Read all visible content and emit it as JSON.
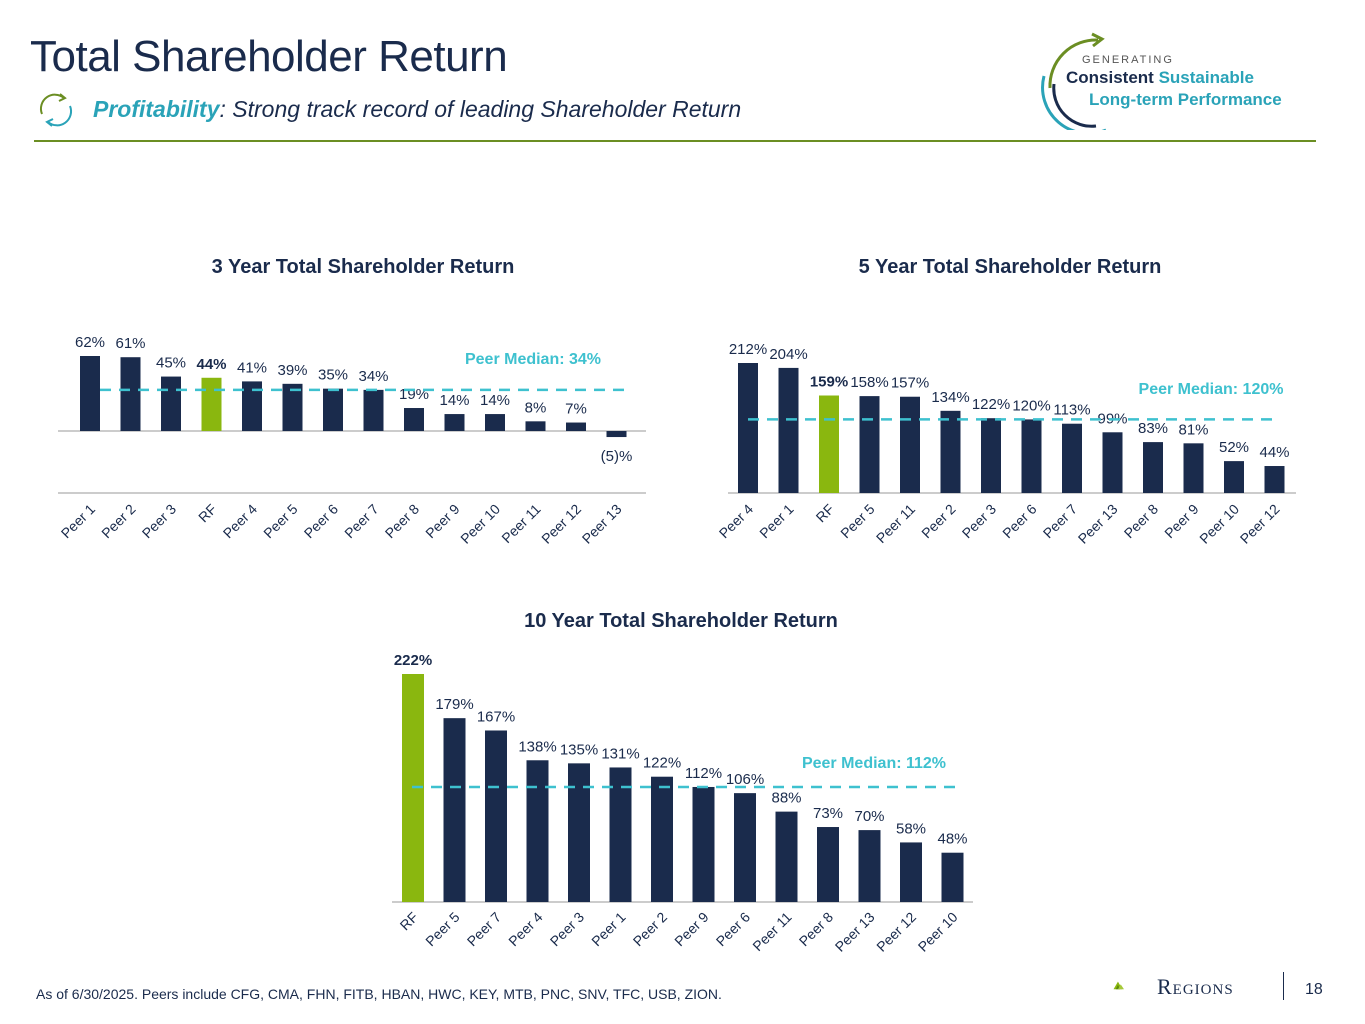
{
  "header": {
    "title": "Total Shareholder Return",
    "subtitle_keyword": "Profitability",
    "subtitle_rest": ": Strong track record of leading Shareholder Return",
    "subtitle_icon": "recycle-arrows-icon"
  },
  "brand": {
    "line0": "GENERATING",
    "line1a": "Consistent",
    "line1b": " Sustainable",
    "line2": "Long-term Performance"
  },
  "colors": {
    "navy": "#1a2b4c",
    "rf_green": "#8ab70f",
    "median_teal": "#3ec1cf",
    "accent_teal": "#2aa3b8",
    "rule_green": "#6b8e23"
  },
  "chart_data": [
    {
      "type": "bar",
      "title": "3 Year Total Shareholder Return",
      "categories": [
        "Peer 1",
        "Peer 2",
        "Peer 3",
        "RF",
        "Peer 4",
        "Peer 5",
        "Peer 6",
        "Peer 7",
        "Peer 8",
        "Peer 9",
        "Peer 10",
        "Peer 11",
        "Peer 12",
        "Peer 13"
      ],
      "values": [
        62,
        61,
        45,
        44,
        41,
        39,
        35,
        34,
        19,
        14,
        14,
        8,
        7,
        -5
      ],
      "value_labels": [
        "62%",
        "61%",
        "45%",
        "44%",
        "41%",
        "39%",
        "35%",
        "34%",
        "19%",
        "14%",
        "14%",
        "8%",
        "7%",
        "(5)%"
      ],
      "highlight": "RF",
      "median": 34,
      "median_label": "Peer Median: 34%",
      "ylim": [
        -52,
        62
      ]
    },
    {
      "type": "bar",
      "title": "5 Year Total Shareholder Return",
      "categories": [
        "Peer 4",
        "Peer 1",
        "RF",
        "Peer 5",
        "Peer 11",
        "Peer 2",
        "Peer 3",
        "Peer 6",
        "Peer 7",
        "Peer 13",
        "Peer 8",
        "Peer 9",
        "Peer 10",
        "Peer 12"
      ],
      "values": [
        212,
        204,
        159,
        158,
        157,
        134,
        122,
        120,
        113,
        99,
        83,
        81,
        52,
        44
      ],
      "value_labels": [
        "212%",
        "204%",
        "159%",
        "158%",
        "157%",
        "134%",
        "122%",
        "120%",
        "113%",
        "99%",
        "83%",
        "81%",
        "52%",
        "44%"
      ],
      "highlight": "RF",
      "median": 120,
      "median_label": "Peer Median: 120%",
      "ylim": [
        0,
        212
      ]
    },
    {
      "type": "bar",
      "title": "10 Year Total Shareholder Return",
      "categories": [
        "RF",
        "Peer 5",
        "Peer 7",
        "Peer 4",
        "Peer 3",
        "Peer 1",
        "Peer 2",
        "Peer 9",
        "Peer 6",
        "Peer 11",
        "Peer 8",
        "Peer 13",
        "Peer 12",
        "Peer 10"
      ],
      "values": [
        222,
        179,
        167,
        138,
        135,
        131,
        122,
        112,
        106,
        88,
        73,
        70,
        58,
        48
      ],
      "value_labels": [
        "222%",
        "179%",
        "167%",
        "138%",
        "135%",
        "131%",
        "122%",
        "112%",
        "106%",
        "88%",
        "73%",
        "70%",
        "58%",
        "48%"
      ],
      "highlight": "RF",
      "median": 112,
      "median_label": "Peer Median: 112%",
      "ylim": [
        0,
        222
      ]
    }
  ],
  "footer": {
    "note": "As of 6/30/2025. Peers include CFG, CMA, FHN, FITB, HBAN, HWC, KEY, MTB, PNC, SNV, TFC, USB, ZION.",
    "logo_text": "Regions",
    "page_number": "18"
  }
}
